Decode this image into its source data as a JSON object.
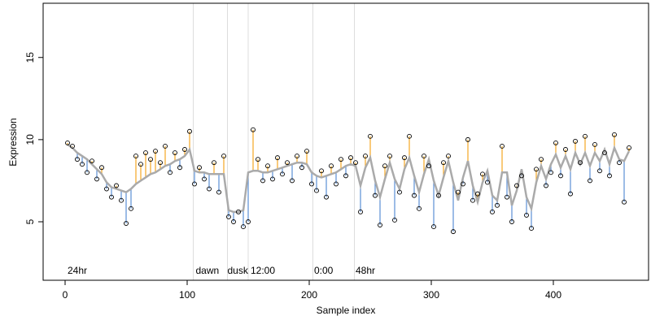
{
  "chart_data": {
    "type": "residual-scatter",
    "x_label": "Sample index",
    "y_label": "Expression",
    "xlim": [
      -18,
      478
    ],
    "ylim": [
      1.44,
      18.3
    ],
    "xticks": [
      0,
      100,
      200,
      300,
      400
    ],
    "yticks": [
      5,
      10,
      15
    ],
    "point_color": "#000000",
    "fit_color": "#aaaaaa",
    "above_color": "#f5a623",
    "below_color": "#5b8fd6",
    "vline_color": "#dddddd",
    "vlines": [
      105,
      133,
      150,
      203,
      237
    ],
    "annotations": [
      {
        "x": 2,
        "text": "24hr"
      },
      {
        "x": 107,
        "text": "dawn"
      },
      {
        "x": 133,
        "text": "dusk"
      },
      {
        "x": 152,
        "text": "12:00"
      },
      {
        "x": 204,
        "text": "0:00"
      },
      {
        "x": 238,
        "text": "48hr"
      }
    ],
    "x": [
      2,
      6,
      10,
      14,
      18,
      22,
      26,
      30,
      34,
      38,
      42,
      46,
      50,
      54,
      58,
      62,
      66,
      70,
      74,
      78,
      82,
      86,
      90,
      94,
      98,
      102,
      106,
      110,
      114,
      118,
      122,
      126,
      130,
      134,
      138,
      142,
      146,
      150,
      154,
      158,
      162,
      166,
      170,
      174,
      178,
      182,
      186,
      190,
      194,
      198,
      202,
      206,
      210,
      214,
      218,
      222,
      226,
      230,
      234,
      238,
      242,
      246,
      250,
      254,
      258,
      262,
      266,
      270,
      274,
      278,
      282,
      286,
      290,
      294,
      298,
      302,
      306,
      310,
      314,
      318,
      322,
      326,
      330,
      334,
      338,
      342,
      346,
      350,
      354,
      358,
      362,
      366,
      370,
      374,
      378,
      382,
      386,
      390,
      394,
      398,
      402,
      406,
      410,
      414,
      418,
      422,
      426,
      430,
      434,
      438,
      442,
      446,
      450,
      454,
      458,
      462
    ],
    "observed": [
      9.8,
      9.6,
      8.8,
      8.5,
      8.0,
      8.7,
      7.6,
      8.3,
      7.0,
      6.5,
      7.2,
      6.3,
      4.9,
      5.8,
      9.0,
      8.5,
      9.2,
      8.8,
      9.3,
      8.6,
      9.6,
      8.0,
      9.2,
      8.3,
      9.4,
      10.5,
      7.3,
      8.3,
      7.6,
      7.0,
      8.6,
      6.8,
      9.0,
      5.3,
      5.0,
      5.6,
      4.7,
      5.0,
      10.6,
      8.8,
      7.5,
      8.4,
      7.6,
      8.9,
      7.9,
      8.6,
      7.5,
      9.0,
      8.3,
      9.3,
      7.3,
      6.9,
      8.1,
      6.5,
      8.4,
      7.3,
      8.8,
      7.8,
      8.9,
      8.6,
      5.6,
      9.0,
      10.2,
      6.6,
      4.8,
      8.4,
      9.0,
      5.1,
      6.8,
      8.9,
      10.2,
      6.6,
      5.8,
      9.0,
      8.4,
      4.7,
      6.6,
      8.6,
      9.0,
      4.4,
      6.8,
      7.3,
      10.0,
      6.3,
      6.7,
      7.9,
      7.4,
      5.6,
      6.0,
      9.6,
      6.5,
      5.0,
      7.2,
      7.8,
      5.4,
      4.6,
      8.2,
      8.8,
      7.2,
      8.0,
      9.8,
      7.8,
      9.4,
      6.7,
      9.9,
      8.6,
      10.2,
      7.5,
      9.7,
      8.1,
      9.2,
      7.8,
      10.3,
      8.6,
      6.2,
      9.5
    ],
    "fitted": [
      9.7,
      9.5,
      9.2,
      9.0,
      8.8,
      8.5,
      8.2,
      7.9,
      7.4,
      7.1,
      7.0,
      6.9,
      6.8,
      7.0,
      7.3,
      7.5,
      7.7,
      7.9,
      8.0,
      8.2,
      8.4,
      8.5,
      8.7,
      8.8,
      9.0,
      9.4,
      8.1,
      8.0,
      8.0,
      7.9,
      7.9,
      7.9,
      7.9,
      5.7,
      5.6,
      5.6,
      5.7,
      8.0,
      8.1,
      8.1,
      8.0,
      8.0,
      8.1,
      8.2,
      8.3,
      8.4,
      8.5,
      8.6,
      8.6,
      8.5,
      8.0,
      7.8,
      7.7,
      7.8,
      7.9,
      8.0,
      8.2,
      8.4,
      8.5,
      8.4,
      7.2,
      8.3,
      8.9,
      7.5,
      6.5,
      7.6,
      8.6,
      7.6,
      7.0,
      8.2,
      8.9,
      7.8,
      6.8,
      7.9,
      8.8,
      7.5,
      6.6,
      7.7,
      8.7,
      7.4,
      6.3,
      7.7,
      8.7,
      7.2,
      6.2,
      7.4,
      8.1,
      6.6,
      6.3,
      8.0,
      8.0,
      6.0,
      6.9,
      8.2,
      6.5,
      5.8,
      7.4,
      8.4,
      7.6,
      8.5,
      9.1,
      8.3,
      9.0,
      8.2,
      9.2,
      8.5,
      9.2,
      8.4,
      9.2,
      8.7,
      9.4,
      8.5,
      9.5,
      8.8,
      8.7,
      9.3
    ]
  }
}
